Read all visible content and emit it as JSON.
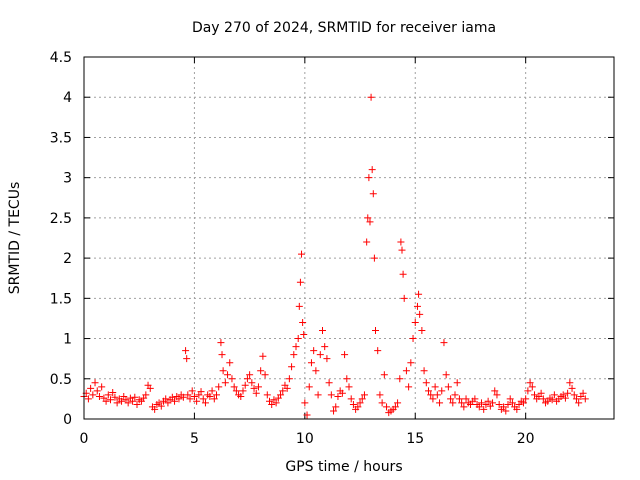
{
  "chart_data": {
    "type": "scatter",
    "title": "Day 270 of 2024, SRMTID for receiver iama",
    "xlabel": "GPS time / hours",
    "ylabel": "SRMTID / TECUs",
    "xlim": [
      0,
      24
    ],
    "ylim": [
      0,
      4.5
    ],
    "xticks": [
      0,
      5,
      10,
      15,
      20
    ],
    "xtick_labels": [
      "0",
      "5",
      "10",
      "15",
      "20"
    ],
    "yticks": [
      0,
      0.5,
      1,
      1.5,
      2,
      2.5,
      3,
      3.5,
      4,
      4.5
    ],
    "ytick_labels": [
      "0",
      "0.5",
      "1",
      "1.5",
      "2",
      "2.5",
      "3",
      "3.5",
      "4",
      "4.5"
    ],
    "grid": true,
    "marker": "+",
    "color": "#ff0000",
    "series": [
      {
        "name": "SRMTID",
        "points": [
          [
            0.0,
            0.28
          ],
          [
            0.1,
            0.32
          ],
          [
            0.2,
            0.25
          ],
          [
            0.3,
            0.38
          ],
          [
            0.4,
            0.3
          ],
          [
            0.5,
            0.45
          ],
          [
            0.6,
            0.35
          ],
          [
            0.7,
            0.28
          ],
          [
            0.8,
            0.4
          ],
          [
            0.9,
            0.26
          ],
          [
            1.0,
            0.22
          ],
          [
            1.1,
            0.3
          ],
          [
            1.2,
            0.24
          ],
          [
            1.3,
            0.33
          ],
          [
            1.4,
            0.27
          ],
          [
            1.5,
            0.2
          ],
          [
            1.6,
            0.25
          ],
          [
            1.7,
            0.22
          ],
          [
            1.8,
            0.28
          ],
          [
            1.9,
            0.24
          ],
          [
            2.0,
            0.2
          ],
          [
            2.1,
            0.26
          ],
          [
            2.2,
            0.22
          ],
          [
            2.3,
            0.27
          ],
          [
            2.4,
            0.18
          ],
          [
            2.5,
            0.24
          ],
          [
            2.6,
            0.22
          ],
          [
            2.7,
            0.26
          ],
          [
            2.8,
            0.3
          ],
          [
            2.9,
            0.42
          ],
          [
            3.0,
            0.38
          ],
          [
            3.1,
            0.15
          ],
          [
            3.2,
            0.12
          ],
          [
            3.3,
            0.18
          ],
          [
            3.4,
            0.2
          ],
          [
            3.5,
            0.16
          ],
          [
            3.6,
            0.22
          ],
          [
            3.7,
            0.25
          ],
          [
            3.8,
            0.2
          ],
          [
            3.9,
            0.24
          ],
          [
            4.0,
            0.27
          ],
          [
            4.1,
            0.22
          ],
          [
            4.2,
            0.28
          ],
          [
            4.3,
            0.25
          ],
          [
            4.4,
            0.3
          ],
          [
            4.5,
            0.27
          ],
          [
            4.6,
            0.85
          ],
          [
            4.65,
            0.75
          ],
          [
            4.7,
            0.3
          ],
          [
            4.8,
            0.25
          ],
          [
            4.9,
            0.35
          ],
          [
            5.0,
            0.28
          ],
          [
            5.1,
            0.22
          ],
          [
            5.2,
            0.3
          ],
          [
            5.3,
            0.34
          ],
          [
            5.4,
            0.25
          ],
          [
            5.5,
            0.2
          ],
          [
            5.6,
            0.3
          ],
          [
            5.7,
            0.28
          ],
          [
            5.8,
            0.35
          ],
          [
            5.9,
            0.25
          ],
          [
            6.0,
            0.3
          ],
          [
            6.1,
            0.4
          ],
          [
            6.2,
            0.95
          ],
          [
            6.25,
            0.8
          ],
          [
            6.3,
            0.6
          ],
          [
            6.4,
            0.45
          ],
          [
            6.5,
            0.55
          ],
          [
            6.6,
            0.7
          ],
          [
            6.7,
            0.5
          ],
          [
            6.8,
            0.4
          ],
          [
            6.9,
            0.35
          ],
          [
            7.0,
            0.3
          ],
          [
            7.1,
            0.28
          ],
          [
            7.2,
            0.35
          ],
          [
            7.3,
            0.42
          ],
          [
            7.4,
            0.5
          ],
          [
            7.5,
            0.55
          ],
          [
            7.6,
            0.45
          ],
          [
            7.7,
            0.38
          ],
          [
            7.8,
            0.32
          ],
          [
            7.9,
            0.4
          ],
          [
            8.0,
            0.6
          ],
          [
            8.1,
            0.78
          ],
          [
            8.2,
            0.55
          ],
          [
            8.3,
            0.3
          ],
          [
            8.4,
            0.22
          ],
          [
            8.5,
            0.18
          ],
          [
            8.6,
            0.24
          ],
          [
            8.7,
            0.2
          ],
          [
            8.8,
            0.26
          ],
          [
            8.9,
            0.3
          ],
          [
            9.0,
            0.35
          ],
          [
            9.1,
            0.42
          ],
          [
            9.2,
            0.38
          ],
          [
            9.3,
            0.5
          ],
          [
            9.4,
            0.65
          ],
          [
            9.5,
            0.8
          ],
          [
            9.6,
            0.9
          ],
          [
            9.7,
            1.0
          ],
          [
            9.75,
            1.4
          ],
          [
            9.8,
            1.7
          ],
          [
            9.85,
            2.05
          ],
          [
            9.9,
            1.2
          ],
          [
            9.95,
            1.05
          ],
          [
            10.0,
            0.2
          ],
          [
            10.1,
            0.05
          ],
          [
            10.2,
            0.4
          ],
          [
            10.3,
            0.7
          ],
          [
            10.4,
            0.85
          ],
          [
            10.5,
            0.6
          ],
          [
            10.6,
            0.3
          ],
          [
            10.7,
            0.8
          ],
          [
            10.8,
            1.1
          ],
          [
            10.9,
            0.9
          ],
          [
            11.0,
            0.75
          ],
          [
            11.1,
            0.45
          ],
          [
            11.2,
            0.3
          ],
          [
            11.3,
            0.1
          ],
          [
            11.4,
            0.15
          ],
          [
            11.5,
            0.28
          ],
          [
            11.6,
            0.35
          ],
          [
            11.7,
            0.32
          ],
          [
            11.8,
            0.8
          ],
          [
            11.9,
            0.5
          ],
          [
            12.0,
            0.4
          ],
          [
            12.1,
            0.25
          ],
          [
            12.2,
            0.18
          ],
          [
            12.3,
            0.12
          ],
          [
            12.4,
            0.15
          ],
          [
            12.5,
            0.2
          ],
          [
            12.6,
            0.25
          ],
          [
            12.7,
            0.3
          ],
          [
            12.8,
            2.2
          ],
          [
            12.85,
            2.5
          ],
          [
            12.9,
            3.0
          ],
          [
            12.95,
            2.45
          ],
          [
            13.0,
            4.0
          ],
          [
            13.05,
            3.1
          ],
          [
            13.1,
            2.8
          ],
          [
            13.15,
            2.0
          ],
          [
            13.2,
            1.1
          ],
          [
            13.3,
            0.85
          ],
          [
            13.4,
            0.3
          ],
          [
            13.5,
            0.2
          ],
          [
            13.6,
            0.55
          ],
          [
            13.7,
            0.15
          ],
          [
            13.8,
            0.08
          ],
          [
            13.9,
            0.1
          ],
          [
            14.0,
            0.12
          ],
          [
            14.1,
            0.15
          ],
          [
            14.2,
            0.2
          ],
          [
            14.3,
            0.5
          ],
          [
            14.35,
            2.2
          ],
          [
            14.4,
            2.1
          ],
          [
            14.45,
            1.8
          ],
          [
            14.5,
            1.5
          ],
          [
            14.6,
            0.6
          ],
          [
            14.7,
            0.4
          ],
          [
            14.8,
            0.7
          ],
          [
            14.9,
            1.0
          ],
          [
            15.0,
            1.2
          ],
          [
            15.1,
            1.4
          ],
          [
            15.15,
            1.55
          ],
          [
            15.2,
            1.3
          ],
          [
            15.3,
            1.1
          ],
          [
            15.4,
            0.6
          ],
          [
            15.5,
            0.45
          ],
          [
            15.6,
            0.35
          ],
          [
            15.7,
            0.3
          ],
          [
            15.8,
            0.25
          ],
          [
            15.9,
            0.4
          ],
          [
            16.0,
            0.3
          ],
          [
            16.1,
            0.2
          ],
          [
            16.2,
            0.35
          ],
          [
            16.3,
            0.95
          ],
          [
            16.4,
            0.55
          ],
          [
            16.5,
            0.4
          ],
          [
            16.6,
            0.25
          ],
          [
            16.7,
            0.2
          ],
          [
            16.8,
            0.3
          ],
          [
            16.9,
            0.45
          ],
          [
            17.0,
            0.25
          ],
          [
            17.1,
            0.2
          ],
          [
            17.2,
            0.15
          ],
          [
            17.3,
            0.25
          ],
          [
            17.4,
            0.2
          ],
          [
            17.5,
            0.18
          ],
          [
            17.6,
            0.22
          ],
          [
            17.7,
            0.25
          ],
          [
            17.8,
            0.18
          ],
          [
            17.9,
            0.15
          ],
          [
            18.0,
            0.2
          ],
          [
            18.1,
            0.12
          ],
          [
            18.2,
            0.18
          ],
          [
            18.3,
            0.22
          ],
          [
            18.4,
            0.16
          ],
          [
            18.5,
            0.2
          ],
          [
            18.6,
            0.35
          ],
          [
            18.7,
            0.3
          ],
          [
            18.8,
            0.18
          ],
          [
            18.9,
            0.12
          ],
          [
            19.0,
            0.15
          ],
          [
            19.1,
            0.1
          ],
          [
            19.2,
            0.18
          ],
          [
            19.3,
            0.25
          ],
          [
            19.4,
            0.2
          ],
          [
            19.5,
            0.15
          ],
          [
            19.6,
            0.12
          ],
          [
            19.7,
            0.18
          ],
          [
            19.8,
            0.22
          ],
          [
            19.9,
            0.2
          ],
          [
            20.0,
            0.25
          ],
          [
            20.1,
            0.35
          ],
          [
            20.2,
            0.45
          ],
          [
            20.3,
            0.4
          ],
          [
            20.4,
            0.3
          ],
          [
            20.5,
            0.25
          ],
          [
            20.6,
            0.28
          ],
          [
            20.7,
            0.32
          ],
          [
            20.8,
            0.25
          ],
          [
            20.9,
            0.2
          ],
          [
            21.0,
            0.22
          ],
          [
            21.1,
            0.26
          ],
          [
            21.2,
            0.24
          ],
          [
            21.3,
            0.3
          ],
          [
            21.4,
            0.22
          ],
          [
            21.5,
            0.25
          ],
          [
            21.6,
            0.28
          ],
          [
            21.7,
            0.3
          ],
          [
            21.8,
            0.26
          ],
          [
            21.9,
            0.32
          ],
          [
            22.0,
            0.45
          ],
          [
            22.1,
            0.38
          ],
          [
            22.2,
            0.3
          ],
          [
            22.3,
            0.25
          ],
          [
            22.4,
            0.2
          ],
          [
            22.5,
            0.28
          ],
          [
            22.6,
            0.32
          ],
          [
            22.7,
            0.25
          ]
        ]
      }
    ]
  }
}
